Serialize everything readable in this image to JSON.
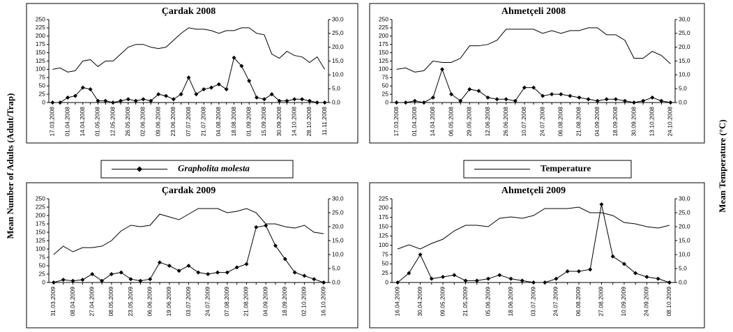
{
  "y_label": "Mean Number of Adults (Adult/Trap)",
  "y2_label": "Mean Temperature (°C)",
  "chart_data": [
    {
      "type": "line",
      "title": "Çardak 2008",
      "categories": [
        "17.03.2008",
        null,
        "01.04.2008",
        null,
        "14.04.2008",
        null,
        "01.05.2008",
        null,
        "12.05.2008",
        null,
        "26.05.2008",
        null,
        "02.06.2008",
        null,
        "09.06.2008",
        null,
        "23.06.2008",
        null,
        "07.07.2008",
        null,
        "21.07.2008",
        null,
        "04.08.2008",
        null,
        "18.08.2008",
        null,
        "01.09.2008",
        null,
        "15.09.2008",
        null,
        "30.09.2008",
        null,
        "14.10.2008",
        null,
        "28.10.2008",
        null,
        "11.11.2008"
      ],
      "series": [
        {
          "name": "Grapholita molesta",
          "color": "#000000",
          "marker": "diamond",
          "values": [
            0,
            0,
            15,
            20,
            45,
            40,
            5,
            5,
            0,
            5,
            10,
            5,
            10,
            5,
            25,
            20,
            10,
            25,
            75,
            25,
            40,
            45,
            55,
            40,
            135,
            110,
            65,
            15,
            10,
            25,
            5,
            5,
            10,
            10,
            5,
            0,
            0
          ]
        },
        {
          "axis": "y2",
          "color": "#000000",
          "values": [
            12,
            12.5,
            11,
            11.5,
            15,
            15.5,
            13,
            15,
            15,
            17.5,
            20,
            21,
            21,
            20,
            19.5,
            20,
            22.5,
            25,
            27,
            26.5,
            26.5,
            26,
            25,
            26,
            26,
            27,
            27,
            25,
            24.5,
            17.5,
            16,
            18.5,
            17,
            16.5,
            14.5,
            16.5,
            12
          ]
        }
      ],
      "ylim": [
        0,
        250
      ],
      "yticks": [
        0,
        25,
        50,
        75,
        100,
        125,
        150,
        175,
        200,
        225,
        250
      ],
      "y2lim": [
        0,
        30
      ],
      "y2ticks": [
        {
          "value": 0,
          "label": "0,0"
        },
        {
          "value": 5,
          "label": "5,0"
        },
        {
          "value": 10,
          "label": "10,0"
        },
        {
          "value": 15,
          "label": "15,0"
        },
        {
          "value": 20,
          "label": "20,0"
        },
        {
          "value": 25,
          "label": "25,0"
        },
        {
          "value": 30,
          "label": "30,0"
        }
      ]
    },
    {
      "type": "line",
      "title": "Ahmetçeli 2008",
      "categories": [
        "17.03.2008",
        null,
        "01.04.2008",
        null,
        "14.04.2008",
        null,
        "06.05.2008",
        null,
        "29.05.2008",
        null,
        "12.06.2008",
        null,
        "26.06.2008",
        null,
        "10.07.2008",
        null,
        "24.07.2008",
        null,
        "06.08.2008",
        null,
        "21.08.2008",
        null,
        "04.09.2008",
        null,
        "18.09.2008",
        null,
        "30.09.2008",
        null,
        "13.10.2008",
        null,
        "24.10.2008"
      ],
      "series": [
        {
          "color": "#000000",
          "marker": "diamond",
          "values": [
            0,
            0,
            5,
            0,
            15,
            100,
            25,
            5,
            40,
            35,
            15,
            10,
            10,
            5,
            45,
            45,
            20,
            25,
            25,
            20,
            15,
            10,
            5,
            10,
            10,
            5,
            0,
            5,
            15,
            5,
            0
          ]
        },
        {
          "name": "Temperature",
          "axis": "y2",
          "color": "#000000",
          "values": [
            12,
            12.5,
            11,
            11.5,
            15,
            14.5,
            14.5,
            16,
            20.5,
            20.5,
            21,
            22.5,
            26.5,
            26.5,
            26.5,
            26.5,
            25,
            26,
            25,
            26,
            26,
            27,
            27,
            24.5,
            24.5,
            22.5,
            16,
            16,
            18.5,
            17,
            14
          ]
        }
      ],
      "ylim": [
        0,
        250
      ],
      "yticks": [
        0,
        25,
        50,
        75,
        100,
        125,
        150,
        175,
        200,
        225,
        250
      ],
      "y2lim": [
        0,
        30
      ],
      "y2ticks": [
        {
          "value": 0,
          "label": "0,0"
        },
        {
          "value": 5,
          "label": "5,0"
        },
        {
          "value": 10,
          "label": "10,0"
        },
        {
          "value": 15,
          "label": "15,0"
        },
        {
          "value": 20,
          "label": "20,0"
        },
        {
          "value": 25,
          "label": "25,0"
        },
        {
          "value": 30,
          "label": "30,0"
        }
      ]
    },
    {
      "type": "line",
      "title": "Çardak 2009",
      "categories": [
        "31.03.2009",
        null,
        "08.04.2009",
        null,
        "27.04.2009",
        null,
        "08.05.2009",
        null,
        "23.05.2009",
        null,
        "06.06.2009",
        null,
        "19.06.2009",
        null,
        "03.07.2009",
        null,
        "24.07.2009",
        null,
        "07.08.2009",
        null,
        "21.08.2009",
        null,
        "04.09.2009",
        null,
        "18.09.2009",
        null,
        "02.10.2009",
        null,
        "16.10.2009"
      ],
      "series": [
        {
          "color": "#000000",
          "marker": "diamond",
          "values": [
            0,
            8,
            5,
            8,
            25,
            5,
            25,
            30,
            10,
            5,
            10,
            60,
            50,
            35,
            50,
            30,
            25,
            30,
            30,
            45,
            55,
            165,
            170,
            110,
            70,
            30,
            20,
            10,
            0
          ]
        },
        {
          "axis": "y2",
          "color": "#000000",
          "values": [
            10,
            13,
            11,
            12.5,
            12.5,
            13,
            15,
            18.5,
            20.5,
            20,
            20.5,
            24.5,
            23.5,
            22.5,
            24.5,
            26.5,
            26.5,
            26.5,
            25,
            25.5,
            26.5,
            25,
            21,
            21,
            20,
            19.5,
            20.5,
            18,
            17.5
          ]
        }
      ],
      "ylim": [
        0,
        250
      ],
      "yticks": [
        0,
        25,
        50,
        75,
        100,
        125,
        150,
        175,
        200,
        225,
        250
      ],
      "y2lim": [
        0,
        30
      ],
      "y2ticks": [
        {
          "value": 0,
          "label": "0,0"
        },
        {
          "value": 5,
          "label": "5,0"
        },
        {
          "value": 10,
          "label": "10,0"
        },
        {
          "value": 15,
          "label": "15,0"
        },
        {
          "value": 20,
          "label": "20,0"
        },
        {
          "value": 25,
          "label": "25,0"
        },
        {
          "value": 30,
          "label": "30,0"
        }
      ]
    },
    {
      "type": "line",
      "title": "Ahmetçeli 2009",
      "categories": [
        "16.04.2009",
        null,
        "30.04.2009",
        null,
        "09.05.2009",
        null,
        "21.05.2009",
        null,
        "05.06.2009",
        null,
        "18.06.2009",
        null,
        "03.07.2009",
        null,
        "24.07.2009",
        null,
        "06.08.2009",
        null,
        "27.08.2009",
        null,
        "10.09.2009",
        null,
        "24.09.2009",
        null,
        "08.10.2009"
      ],
      "series": [
        {
          "color": "#000000",
          "marker": "diamond",
          "values": [
            0,
            25,
            75,
            10,
            15,
            20,
            5,
            5,
            10,
            20,
            10,
            5,
            0,
            0,
            10,
            30,
            30,
            35,
            210,
            70,
            50,
            25,
            15,
            10,
            0
          ]
        },
        {
          "axis": "y2",
          "color": "#000000",
          "values": [
            12,
            13.5,
            12,
            14,
            15.5,
            18.5,
            20.5,
            20.5,
            20,
            23,
            23.5,
            23,
            24,
            26.5,
            26.5,
            26.5,
            27,
            25,
            25,
            24,
            21.5,
            21,
            20,
            19.5,
            20.5
          ]
        }
      ],
      "ylim": [
        0,
        225
      ],
      "yticks": [
        0,
        25,
        50,
        75,
        100,
        125,
        150,
        175,
        200,
        225
      ],
      "y2lim": [
        0,
        30
      ],
      "y2ticks": [
        {
          "value": 0,
          "label": "0,0"
        },
        {
          "value": 5,
          "label": "5,0"
        },
        {
          "value": 10,
          "label": "10,0"
        },
        {
          "value": 15,
          "label": "15,0"
        },
        {
          "value": 20,
          "label": "20,0"
        },
        {
          "value": 25,
          "label": "25,0"
        },
        {
          "value": 30,
          "label": "30,0"
        }
      ]
    }
  ]
}
